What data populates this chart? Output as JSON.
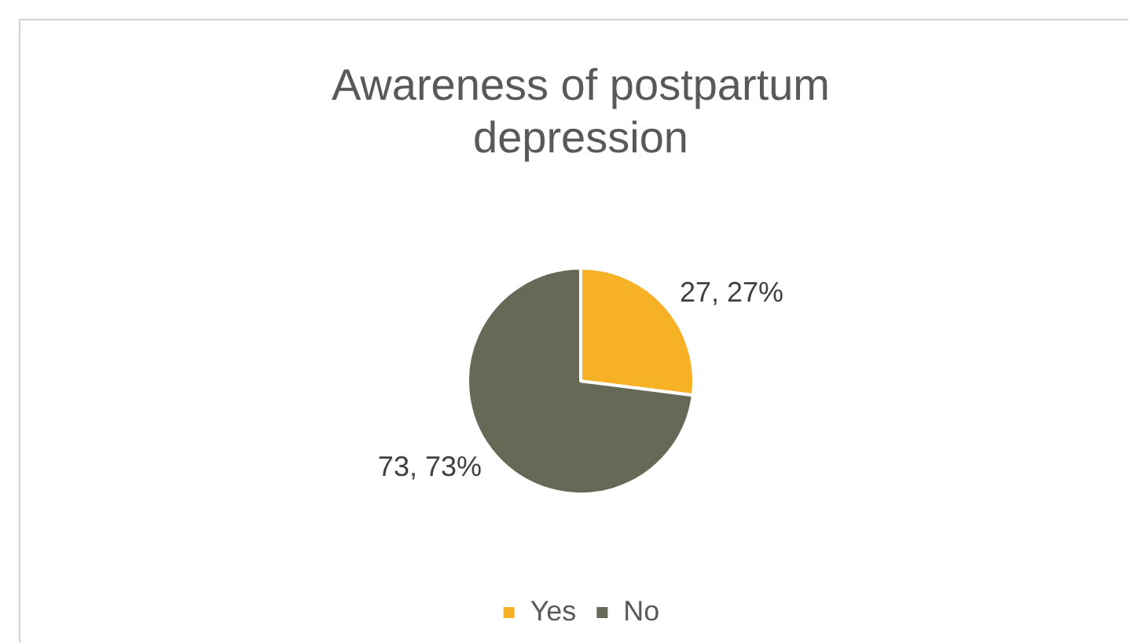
{
  "chart_data": {
    "type": "pie",
    "title": "Awareness of postpartum depression",
    "categories": [
      "Yes",
      "No"
    ],
    "values": [
      27,
      73
    ],
    "colors": [
      "#f6b224",
      "#666955"
    ],
    "value_labels": [
      "27, 27%",
      "73, 73%"
    ],
    "legend": "bottom"
  }
}
